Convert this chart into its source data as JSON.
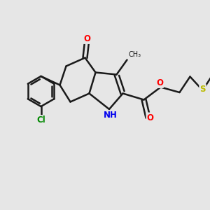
{
  "background_color": "#e6e6e6",
  "bond_color": "#1a1a1a",
  "bond_width": 1.8,
  "dbo": 0.12,
  "atom_colors": {
    "O": "#ff0000",
    "N": "#0000ee",
    "S": "#bbbb00",
    "Cl": "#008800",
    "C": "#1a1a1a"
  },
  "font_size": 8.5,
  "fig_width": 3.0,
  "fig_height": 3.0,
  "dpi": 100,
  "xlim": [
    0,
    10
  ],
  "ylim": [
    0,
    10
  ]
}
